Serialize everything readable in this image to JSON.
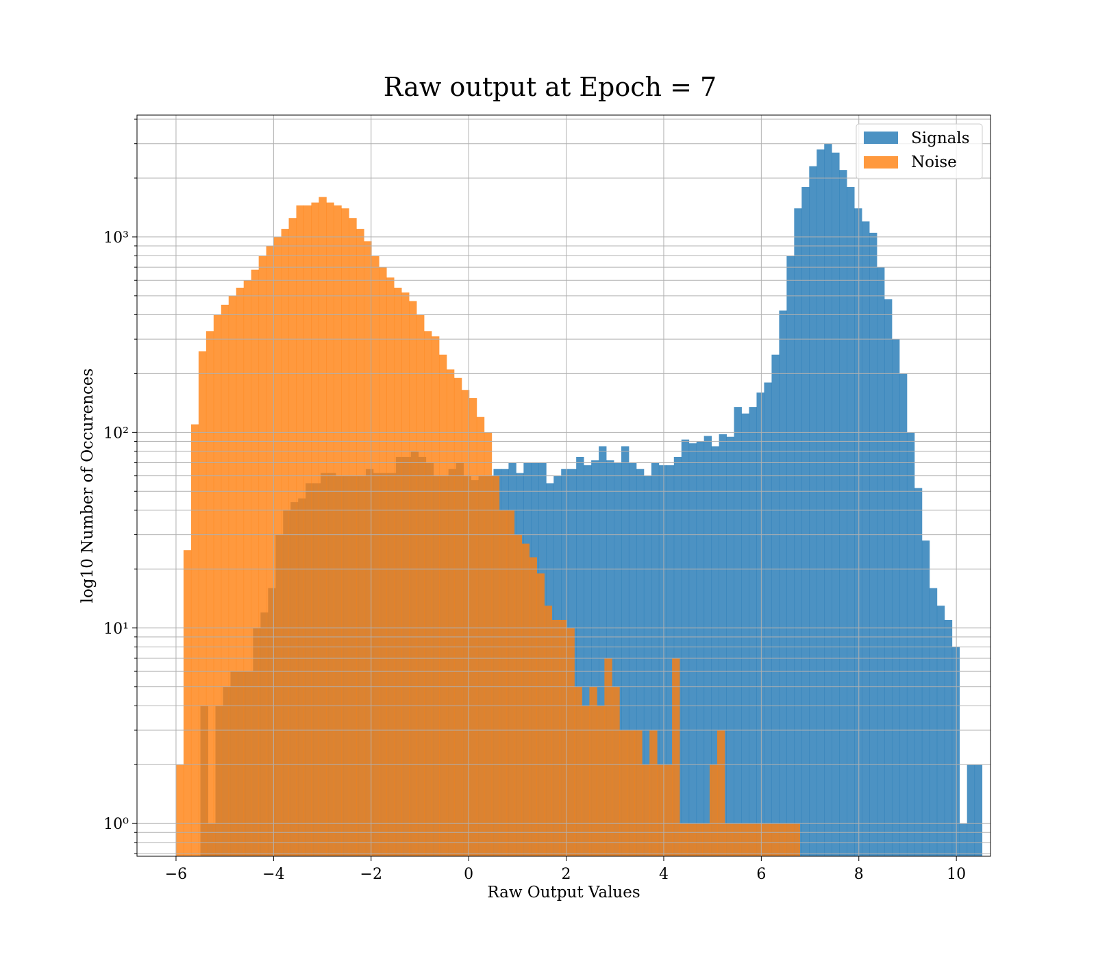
{
  "chart_data": {
    "type": "bar",
    "title": "Raw output at Epoch = 7",
    "xlabel": "Raw Output Values",
    "ylabel": "log10 Number of Occurences",
    "yscale": "log",
    "xlim": [
      -6.8,
      10.7
    ],
    "ylim": [
      0.68,
      4200
    ],
    "xticks": [
      -6,
      -4,
      -2,
      0,
      2,
      4,
      6,
      8,
      10
    ],
    "xtick_labels": [
      "−6",
      "−4",
      "−2",
      "0",
      "2",
      "4",
      "6",
      "8",
      "10"
    ],
    "yticks": [
      1,
      10,
      100,
      1000
    ],
    "ytick_labels": [
      "10⁰",
      "10¹",
      "10²",
      "10³"
    ],
    "grid": true,
    "legend_position": "top-right",
    "series": [
      {
        "name": "Signals",
        "color": "#1f77b4",
        "bins_start": -5.5,
        "bin_width": 0.1541,
        "values": [
          4,
          1,
          4,
          5,
          6,
          6,
          6,
          10,
          12,
          16,
          30,
          40,
          44,
          46,
          55,
          55,
          62,
          62,
          60,
          60,
          60,
          60,
          65,
          62,
          62,
          62,
          75,
          75,
          80,
          75,
          70,
          60,
          60,
          65,
          70,
          60,
          57,
          60,
          60,
          65,
          65,
          70,
          62,
          70,
          70,
          70,
          55,
          60,
          65,
          65,
          75,
          68,
          72,
          85,
          72,
          70,
          85,
          70,
          65,
          60,
          70,
          68,
          68,
          75,
          92,
          88,
          90,
          96,
          85,
          98,
          95,
          135,
          125,
          135,
          160,
          180,
          250,
          420,
          800,
          1400,
          1800,
          2300,
          2800,
          3000,
          2700,
          2200,
          1800,
          1400,
          1200,
          1050,
          700,
          480,
          300,
          200,
          100,
          52,
          28,
          16,
          13,
          11,
          8,
          1,
          2,
          2
        ]
      },
      {
        "name": "Noise",
        "color": "#ff7f0e",
        "bins_start": -6.0,
        "bin_width": 0.1541,
        "values": [
          2,
          25,
          110,
          260,
          330,
          400,
          450,
          500,
          550,
          600,
          680,
          800,
          900,
          1000,
          1100,
          1250,
          1450,
          1450,
          1500,
          1600,
          1500,
          1450,
          1400,
          1250,
          1100,
          950,
          800,
          700,
          620,
          550,
          520,
          470,
          400,
          330,
          310,
          250,
          210,
          190,
          165,
          150,
          120,
          100,
          60,
          40,
          40,
          30,
          27,
          23,
          19,
          13,
          11,
          11,
          10,
          5,
          4,
          5,
          4,
          7,
          5,
          3,
          3,
          3,
          2,
          3,
          2,
          2,
          7,
          1,
          1,
          1,
          1,
          2,
          3,
          1,
          1,
          1,
          1,
          1,
          1,
          1,
          1,
          1,
          1
        ]
      }
    ]
  }
}
